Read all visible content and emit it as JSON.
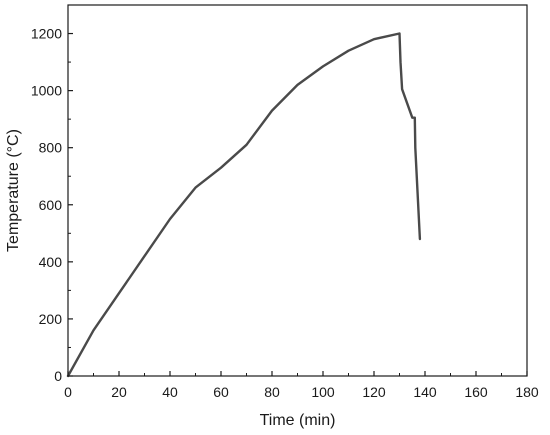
{
  "chart_data": {
    "type": "line",
    "title": "",
    "xlabel": "Time (min)",
    "ylabel": "Temperature (°C)",
    "xlim": [
      0,
      180
    ],
    "ylim": [
      0,
      1300
    ],
    "x_ticks": [
      0,
      20,
      40,
      60,
      80,
      100,
      120,
      140,
      160,
      180
    ],
    "y_ticks": [
      0,
      200,
      400,
      600,
      800,
      1000,
      1200
    ],
    "grid": false,
    "legend": "none",
    "series": [
      {
        "color": "#4a4a4a",
        "x": [
          0,
          10,
          20,
          30,
          40,
          50,
          60,
          70,
          80,
          90,
          100,
          110,
          120,
          130,
          130.4,
          131,
          135,
          136,
          136.2,
          138
        ],
        "y": [
          0,
          160,
          290,
          420,
          550,
          660,
          730,
          810,
          930,
          1020,
          1085,
          1140,
          1180,
          1200,
          1100,
          1005,
          905,
          905,
          800,
          480
        ]
      }
    ]
  }
}
